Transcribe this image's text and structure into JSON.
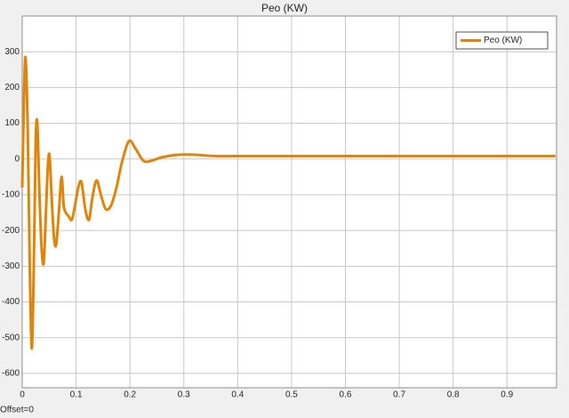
{
  "chart_data": {
    "type": "line",
    "title": "Peo (KW)",
    "footer": "Offset=0",
    "x": [
      0,
      0.003,
      0.006,
      0.01,
      0.014,
      0.018,
      0.022,
      0.025,
      0.028,
      0.032,
      0.036,
      0.04,
      0.044,
      0.048,
      0.051,
      0.055,
      0.059,
      0.063,
      0.068,
      0.073,
      0.077,
      0.081,
      0.086,
      0.092,
      0.098,
      0.104,
      0.11,
      0.117,
      0.124,
      0.13,
      0.138,
      0.146,
      0.155,
      0.165,
      0.175,
      0.185,
      0.198,
      0.21,
      0.225,
      0.24,
      0.26,
      0.29,
      0.32,
      0.36,
      0.4,
      0.5,
      0.6,
      0.7,
      0.8,
      0.9,
      0.99
    ],
    "series": [
      {
        "name": "Peo (KW)",
        "color": "#e0850c",
        "values": [
          -80,
          150,
          285,
          100,
          -300,
          -530,
          -250,
          50,
          100,
          -100,
          -250,
          -290,
          -150,
          -10,
          5,
          -120,
          -220,
          -240,
          -150,
          -50,
          -130,
          -150,
          -160,
          -170,
          -130,
          -80,
          -65,
          -140,
          -170,
          -110,
          -60,
          -100,
          -140,
          -130,
          -80,
          -10,
          50,
          30,
          -5,
          -5,
          5,
          12,
          12,
          8,
          8,
          8,
          8,
          8,
          8,
          8,
          8
        ]
      }
    ],
    "xlim": [
      0,
      0.992
    ],
    "xticks": [
      0,
      0.1,
      0.2,
      0.3,
      0.4,
      0.5,
      0.6,
      0.7,
      0.8,
      0.9
    ],
    "ylim": [
      -640,
      400
    ],
    "yticks": [
      -600,
      -500,
      -400,
      -300,
      -200,
      -100,
      0,
      100,
      200,
      300
    ],
    "grid": true,
    "legend": "upper right"
  }
}
